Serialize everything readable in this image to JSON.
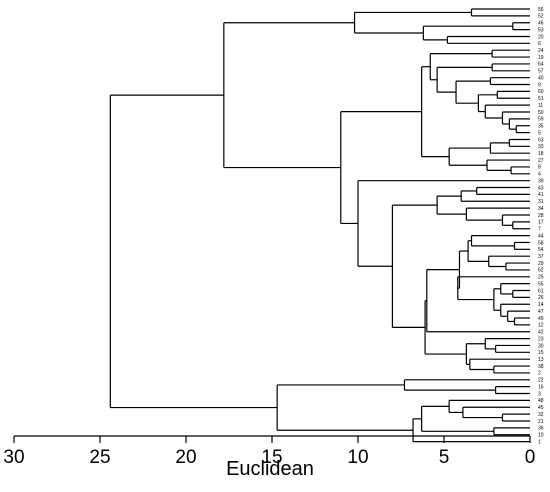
{
  "chart_data": {
    "type": "dendrogram",
    "xlabel": "Euclidean",
    "xlim": [
      30,
      0
    ],
    "ticks": [
      30,
      25,
      20,
      15,
      10,
      5,
      0
    ],
    "leaves": [
      "56",
      "52",
      "46",
      "53",
      "20",
      "6",
      "24",
      "19",
      "64",
      "57",
      "40",
      "9",
      "60",
      "51",
      "11",
      "50",
      "59",
      "35",
      "5",
      "63",
      "33",
      "18",
      "27",
      "8",
      "4",
      "39",
      "43",
      "41",
      "31",
      "34",
      "28",
      "17",
      "7",
      "44",
      "58",
      "54",
      "37",
      "29",
      "62",
      "25",
      "55",
      "61",
      "26",
      "14",
      "47",
      "49",
      "12",
      "42",
      "23",
      "30",
      "15",
      "13",
      "38",
      "2",
      "22",
      "16",
      "3",
      "48",
      "45",
      "32",
      "21",
      "36",
      "10",
      "1"
    ],
    "tree": [
      24.4,
      [
        17.8,
        [
          10.2,
          [
            3.4,
            "56",
            "52"
          ],
          [
            6.2,
            [
              1,
              "46",
              "53"
            ],
            [
              4.8,
              "20",
              "6"
            ]
          ]
        ],
        [
          11.0,
          [
            6.3,
            [
              5.8,
              [
                2.2,
                "24",
                "19"
              ],
              [
                5.4,
                [
                  2.2,
                  "64",
                  "57"
                ],
                [
                  4.3,
                  [
                    2.3,
                    "40",
                    "9"
                  ],
                  [
                    3.0,
                    [
                      1.9,
                      "60",
                      "51"
                    ],
                    [
                      2.6,
                      "11",
                      [
                        1.6,
                        "50",
                        [
                          1.2,
                          "59",
                          [
                            0.8,
                            "35",
                            "5"
                          ]
                        ]
                      ]
                    ]
                  ]
                ]
              ]
            ],
            [
              4.7,
              [
                2.3,
                [
                  1.2,
                  "63",
                  "33"
                ],
                "18"
              ],
              [
                2.5,
                "27",
                [
                  1.1,
                  "8",
                  "4"
                ]
              ]
            ]
          ],
          [
            10.0,
            "39",
            [
              8.0,
              [
                5.4,
                [
                  4.0,
                  [
                    3.1,
                    "43",
                    "41"
                  ],
                  "31"
                ],
                [
                  3.7,
                  "34",
                  [
                    1.6,
                    "28",
                    [
                      1.0,
                      "17",
                      "7"
                    ]
                  ]
                ]
              ],
              [
                6.1,
                [
                  6.0,
                  [
                    4.1,
                    [
                      3.6,
                      [
                        3.4,
                        "44",
                        [
                          0.9,
                          "58",
                          "54"
                        ]
                      ],
                      [
                        2.4,
                        "37",
                        [
                          1.4,
                          "29",
                          "62"
                        ]
                      ]
                    ],
                    [
                      4.2,
                      "25",
                      [
                        2.1,
                        [
                          1.7,
                          "55",
                          [
                            1.0,
                            "61",
                            "26"
                          ]
                        ],
                        [
                          1.7,
                          "14",
                          [
                            1.3,
                            "47",
                            [
                              0.9,
                              "49",
                              "12"
                            ]
                          ]
                        ]
                      ]
                    ]
                  ],
                  "42"
                ],
                [
                  3.7,
                  [
                    2.6,
                    "23",
                    [
                      2.0,
                      "30",
                      "15"
                    ]
                  ],
                  [
                    3.5,
                    "13",
                    [
                      2.1,
                      "38",
                      "2"
                    ]
                  ]
                ]
              ]
            ]
          ]
        ]
      ],
      [
        14.7,
        [
          7.3,
          "22",
          [
            2.0,
            "16",
            "3"
          ]
        ],
        [
          6.8,
          [
            6.3,
            [
              4.7,
              "48",
              [
                3.9,
                "45",
                [
                  1.6,
                  "32",
                  "21"
                ]
              ]
            ],
            [
              2.1,
              "36",
              "10"
            ]
          ],
          "1"
        ]
      ]
    ]
  }
}
